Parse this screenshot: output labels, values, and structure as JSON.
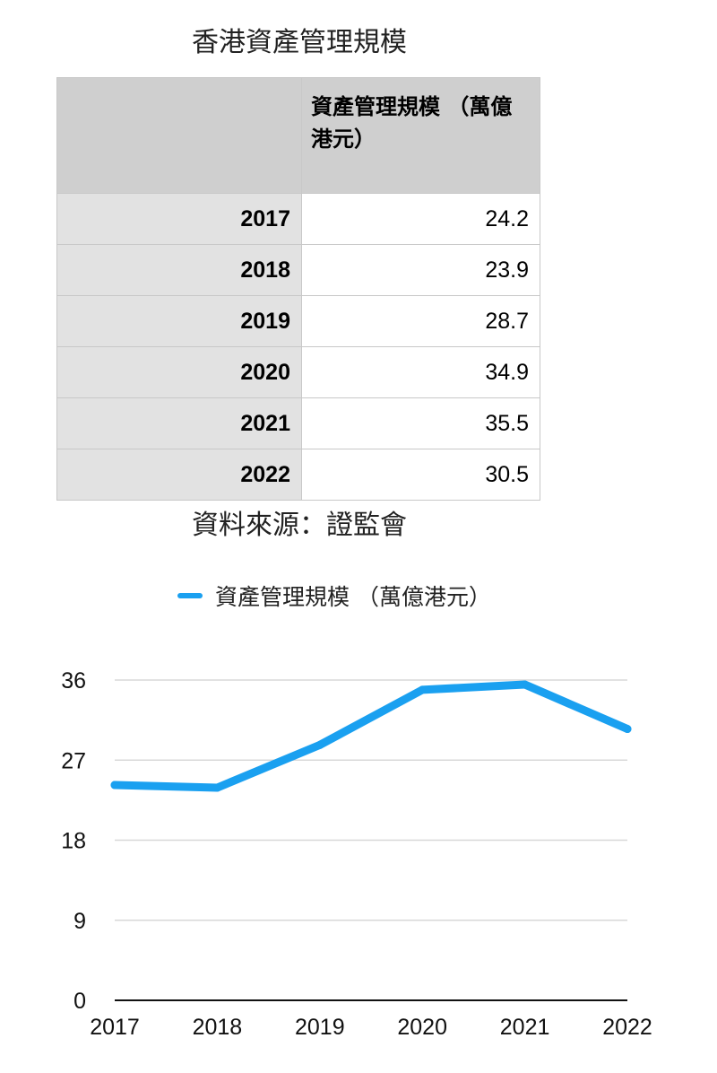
{
  "title": "香港資產管理規模",
  "table": {
    "column_header": "資產管理規模 （萬億港元）",
    "rows": [
      {
        "year": "2017",
        "value": "24.2"
      },
      {
        "year": "2018",
        "value": "23.9"
      },
      {
        "year": "2019",
        "value": "28.7"
      },
      {
        "year": "2020",
        "value": "34.9"
      },
      {
        "year": "2021",
        "value": "35.5"
      },
      {
        "year": "2022",
        "value": "30.5"
      }
    ]
  },
  "source": "資料來源：證監會",
  "chart_data": {
    "type": "line",
    "x": [
      "2017",
      "2018",
      "2019",
      "2020",
      "2021",
      "2022"
    ],
    "series": [
      {
        "name": "資產管理規模 （萬億港元）",
        "values": [
          24.2,
          23.9,
          28.7,
          34.9,
          35.5,
          30.5
        ],
        "color": "#1aa0f0"
      }
    ],
    "ylim": [
      0,
      36
    ],
    "yticks": [
      "0",
      "9",
      "18",
      "27",
      "36"
    ],
    "grid": true,
    "legend": "top"
  }
}
